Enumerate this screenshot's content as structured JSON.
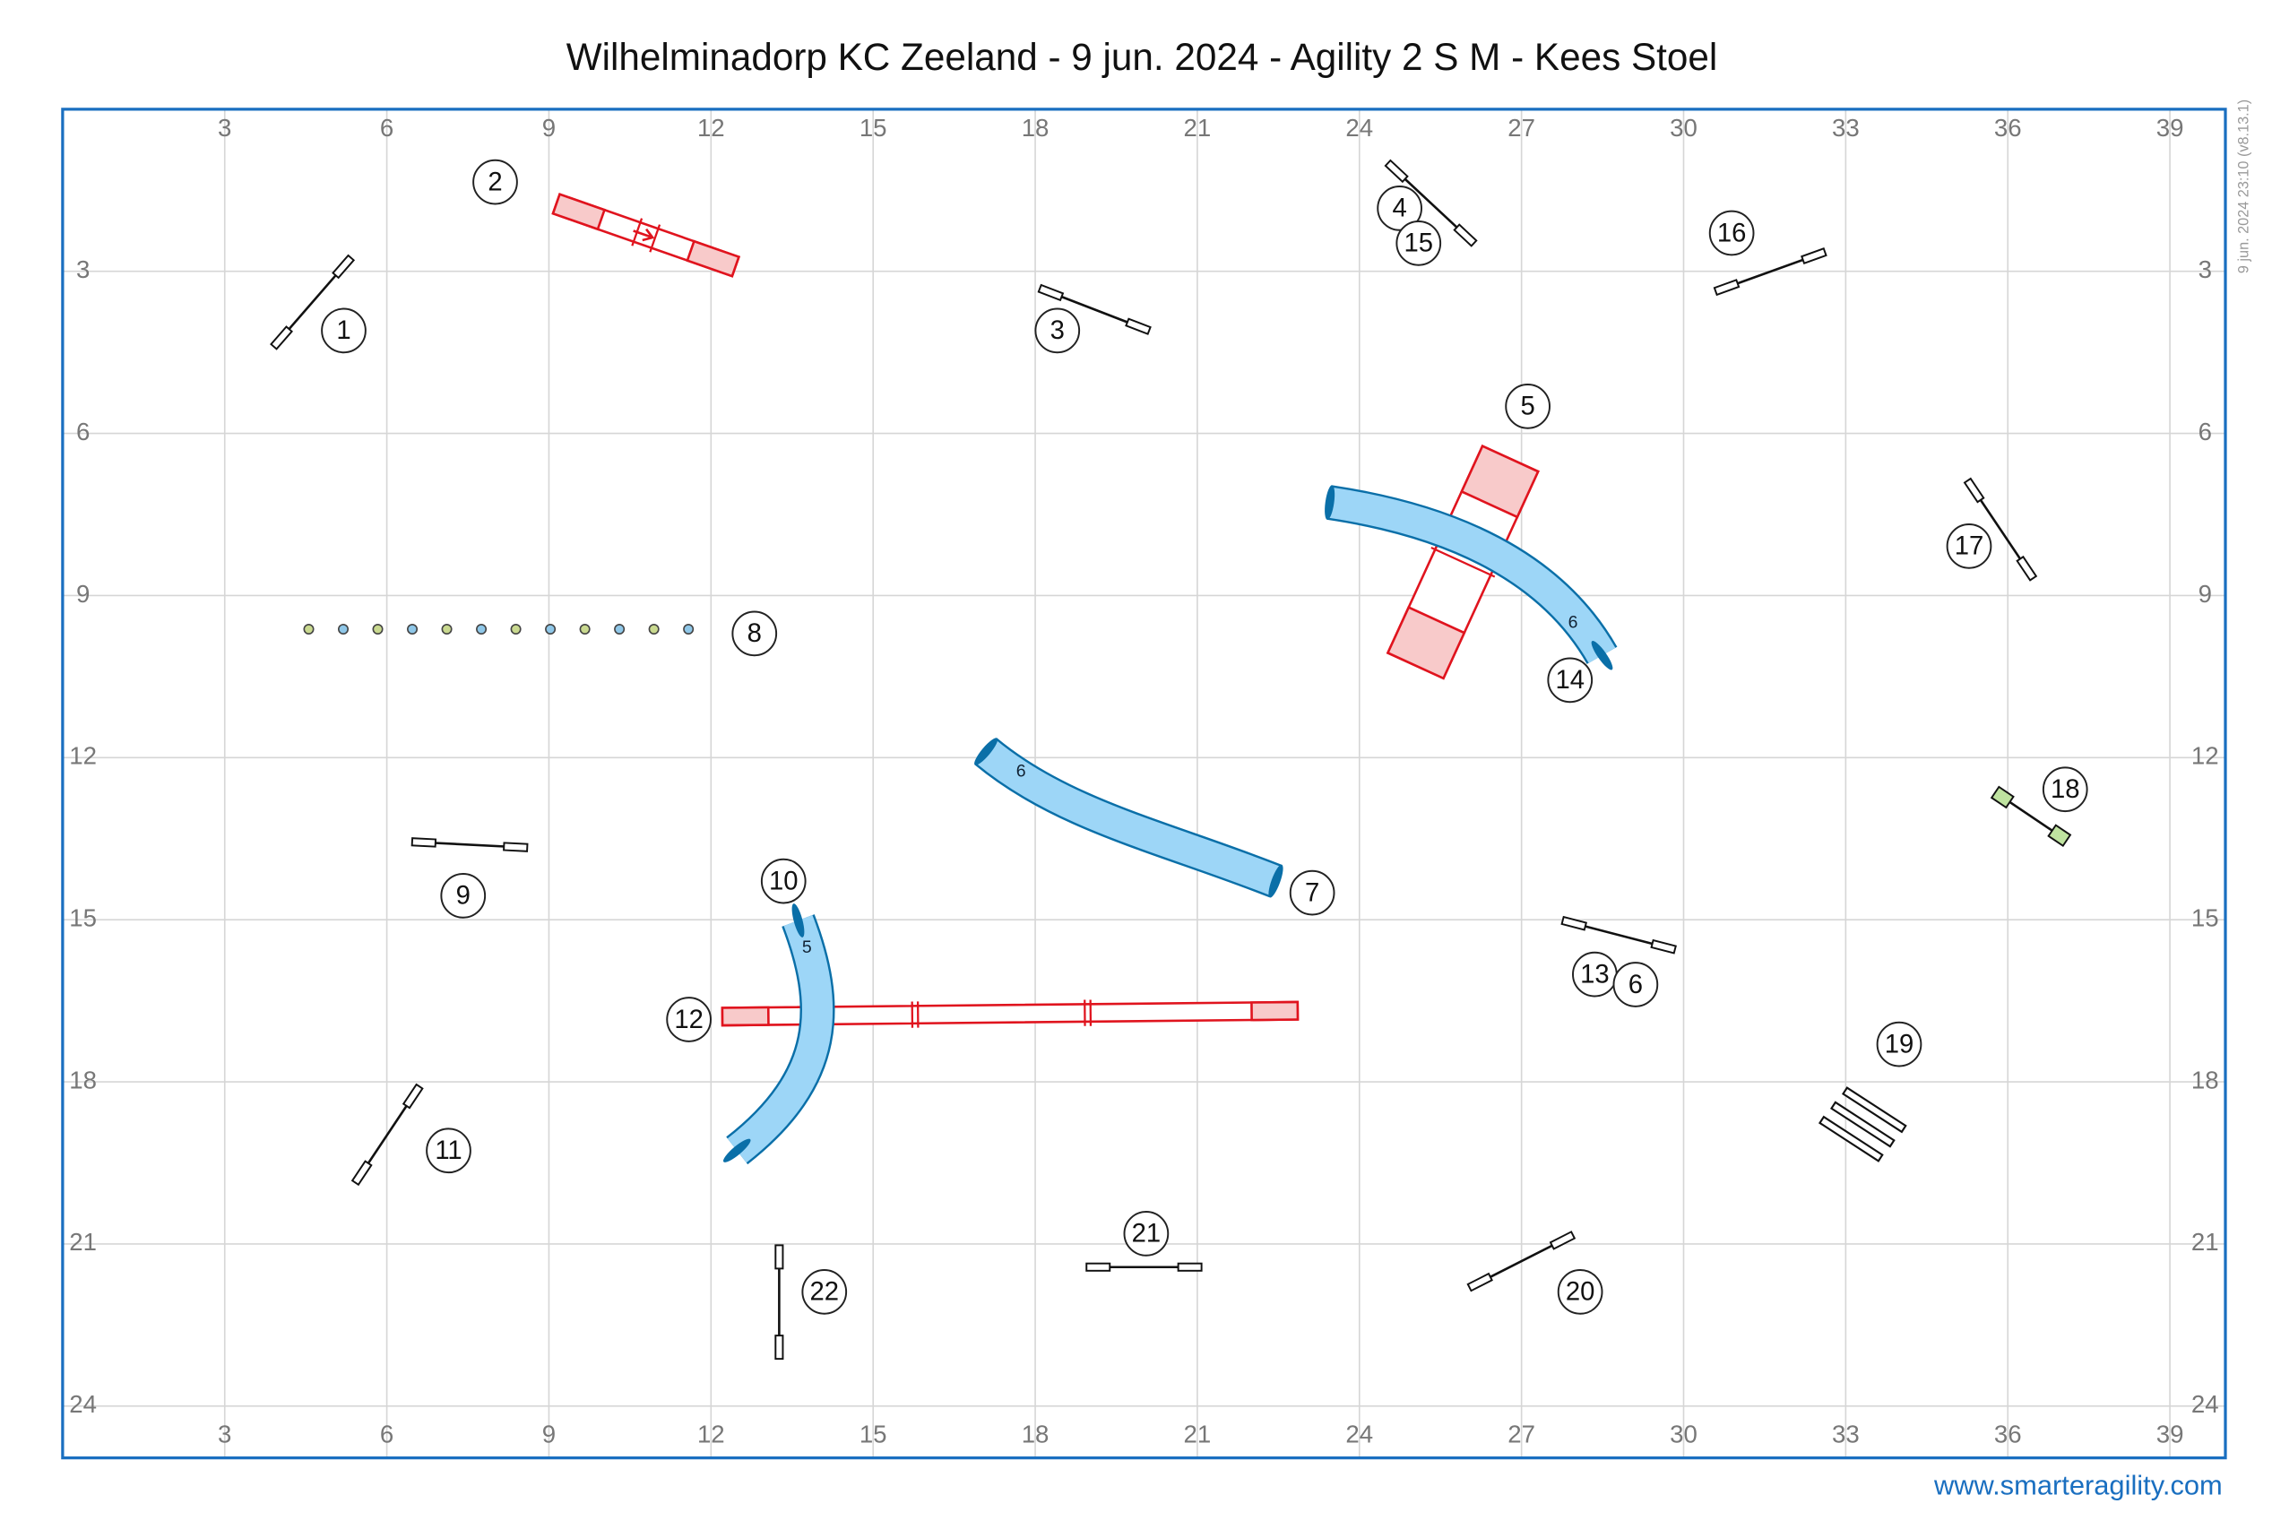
{
  "title": "Wilhelminadorp KC Zeeland - 9 jun. 2024 - Agility 2 S M - Kees Stoel",
  "timestamp": "9 jun. 2024 23:10  (v8.13.1)",
  "footer": "www.smarteragility.com",
  "grid": {
    "xticks": [
      3,
      6,
      9,
      12,
      15,
      18,
      21,
      24,
      27,
      30,
      33,
      36,
      39
    ],
    "yticks": [
      3,
      6,
      9,
      12,
      15,
      18,
      21,
      24
    ]
  },
  "obstacle_numbers": [
    1,
    2,
    3,
    4,
    15,
    16,
    5,
    14,
    17,
    8,
    7,
    18,
    9,
    10,
    12,
    13,
    6,
    19,
    11,
    21,
    20,
    22
  ],
  "tunnel_labels": [
    "6",
    "6",
    "5"
  ]
}
